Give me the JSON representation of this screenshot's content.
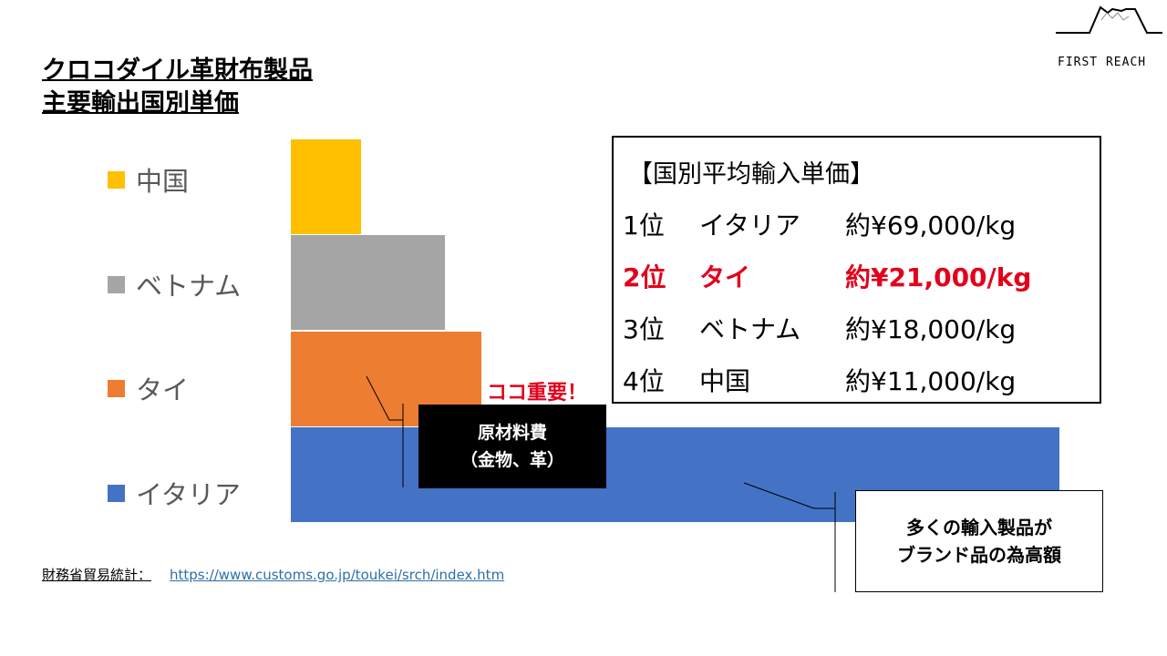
{
  "title": [
    "クロコダイル革財布製品",
    "主要輸出国別単価"
  ],
  "chart_data": {
    "type": "bar",
    "orientation": "horizontal",
    "categories": [
      "中国",
      "ベトナム",
      "タイ",
      "イタリア"
    ],
    "values": [
      11000,
      18000,
      21000,
      69000
    ],
    "unit": "円/kg",
    "xlim": [
      5200,
      69000
    ],
    "colors": [
      "#ffc000",
      "#a5a5a5",
      "#ed7d31",
      "#4472c4"
    ],
    "legend_position": "left"
  },
  "price_box": {
    "heading": "【国別平均輸入単価】",
    "rows": [
      {
        "rank": "1位",
        "country": "イタリア",
        "price": "約¥69,000/kg",
        "highlight": false
      },
      {
        "rank": "2位",
        "country": "タイ",
        "price": "約¥21,000/kg",
        "highlight": true
      },
      {
        "rank": "3位",
        "country": "ベトナム",
        "price": "約¥18,000/kg",
        "highlight": false
      },
      {
        "rank": "4位",
        "country": "中国",
        "price": "約¥11,000/kg",
        "highlight": false
      }
    ],
    "highlight_color": "#e3001b"
  },
  "important": "ココ重要！",
  "callout_materials": [
    "原材料費",
    "（金物、革）"
  ],
  "callout_brand": [
    "多くの輸入製品が",
    "ブランド品の為高額"
  ],
  "source": {
    "label": "財務省貿易統計：",
    "url": "https://www.customs.go.jp/toukei/srch/index.htm"
  },
  "logo": "FIRST REACH"
}
